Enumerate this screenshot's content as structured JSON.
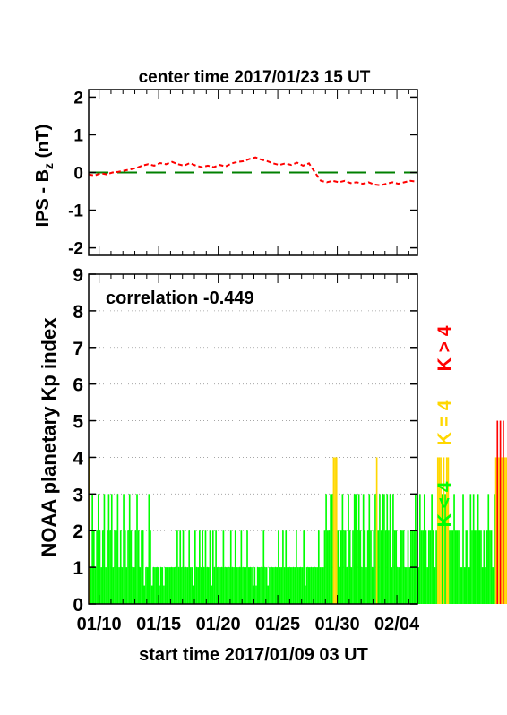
{
  "chart_data": [
    {
      "type": "line",
      "title": "center time 2017/01/23 15 UT",
      "ylabel_main": "IPS - B",
      "ylabel_sub": "z",
      "ylabel_unit": " (nT)",
      "ylim": [
        -2.2,
        2.2
      ],
      "yticks": [
        "-2",
        "-1",
        "0",
        "1",
        "2"
      ],
      "ytick_values": [
        -2,
        -1,
        0,
        1,
        2
      ],
      "xlim_days": [
        0,
        27.6
      ],
      "reference_line": {
        "y": 0,
        "color": "#008000",
        "style": "long-dash"
      },
      "series": [
        {
          "color": "#ff0000",
          "style": "dashed",
          "x": [
            0,
            0.5,
            1,
            1.5,
            2,
            2.5,
            3,
            3.5,
            4,
            4.5,
            5,
            5.5,
            6,
            6.5,
            7,
            7.5,
            8,
            8.5,
            9,
            9.5,
            10,
            10.5,
            11,
            11.5,
            12,
            12.5,
            13,
            13.5,
            14,
            14.5,
            15,
            15.5,
            16,
            16.5,
            17,
            17.5,
            18,
            18.5,
            19,
            19.5,
            20,
            20.5,
            21,
            21.5,
            22,
            22.5,
            23,
            23.5,
            24,
            24.5,
            25,
            25.5,
            26,
            26.5,
            27,
            27.5
          ],
          "y": [
            -0.05,
            -0.08,
            -0.02,
            -0.05,
            0.0,
            0.02,
            0.05,
            0.08,
            0.12,
            0.18,
            0.22,
            0.18,
            0.25,
            0.22,
            0.28,
            0.22,
            0.18,
            0.25,
            0.18,
            0.14,
            0.18,
            0.14,
            0.2,
            0.16,
            0.24,
            0.28,
            0.3,
            0.36,
            0.4,
            0.34,
            0.3,
            0.24,
            0.2,
            0.24,
            0.2,
            0.26,
            0.18,
            0.24,
            0.0,
            -0.22,
            -0.26,
            -0.22,
            -0.26,
            -0.22,
            -0.28,
            -0.26,
            -0.3,
            -0.26,
            -0.32,
            -0.34,
            -0.3,
            -0.26,
            -0.3,
            -0.26,
            -0.22,
            -0.24
          ]
        }
      ]
    },
    {
      "type": "bar",
      "ylabel": "NOAA planetary Kp index",
      "xlabel": "start time 2017/01/09 03 UT",
      "annotation": "correlation -0.449",
      "ylim": [
        0,
        9
      ],
      "yticks": [
        "0",
        "1",
        "2",
        "3",
        "4",
        "5",
        "6",
        "7",
        "8",
        "9"
      ],
      "ytick_values": [
        0,
        1,
        2,
        3,
        4,
        5,
        6,
        7,
        8,
        9
      ],
      "grid": "horizontal dotted",
      "xlim_days": [
        0,
        27.6
      ],
      "xticks": [
        "01/10",
        "01/15",
        "01/20",
        "01/25",
        "01/30",
        "02/04"
      ],
      "xtick_days": [
        0.875,
        5.875,
        10.875,
        15.875,
        20.875,
        25.875
      ],
      "bar_width_days": 0.125,
      "colors": {
        "low": "#00ff00",
        "mid": "#ffd700",
        "high": "#ff0000"
      },
      "legend": [
        {
          "label": "K < 4",
          "color": "#00ff00"
        },
        {
          "label": "K = 4",
          "color": "#ffd700"
        },
        {
          "label": "K > 4",
          "color": "#ff0000"
        }
      ],
      "legend_placement": "right, vertical",
      "series": [
        {
          "name": "Kp",
          "values": [
            4,
            1,
            3,
            2,
            1,
            2,
            3,
            2,
            1,
            2,
            3,
            1,
            2,
            3,
            2,
            3,
            1,
            2,
            2,
            3,
            1,
            2,
            1,
            3,
            2,
            1,
            2,
            3,
            2,
            1,
            1,
            2,
            3,
            2,
            1,
            2,
            2,
            0,
            1,
            1,
            3,
            2,
            0,
            1,
            1,
            1,
            1,
            0,
            1,
            1,
            0,
            1,
            1,
            1,
            1,
            1,
            1,
            1,
            1,
            2,
            1,
            2,
            1,
            2,
            1,
            1,
            1,
            2,
            1,
            1,
            0,
            2,
            1,
            1,
            2,
            1,
            2,
            1,
            2,
            1,
            1,
            2,
            0,
            2,
            1,
            2,
            1,
            1,
            1,
            1,
            2,
            1,
            1,
            1,
            1,
            2,
            1,
            1,
            2,
            1,
            1,
            1,
            2,
            1,
            1,
            1,
            2,
            1,
            1,
            1,
            0,
            1,
            0,
            1,
            1,
            1,
            1,
            2,
            1,
            1,
            0,
            1,
            1,
            1,
            1,
            1,
            1,
            2,
            1,
            1,
            2,
            1,
            2,
            1,
            1,
            1,
            1,
            1,
            1,
            2,
            1,
            1,
            1,
            1,
            2,
            0,
            1,
            1,
            1,
            1,
            1,
            1,
            1,
            1,
            2,
            1,
            1,
            1,
            2,
            3,
            2,
            2,
            3,
            3,
            4,
            4,
            4,
            2,
            1,
            2,
            3,
            2,
            2,
            1,
            3,
            2,
            1,
            2,
            3,
            3,
            2,
            3,
            2,
            1,
            3,
            2,
            1,
            2,
            3,
            2,
            1,
            2,
            3,
            4,
            2,
            3,
            2,
            3,
            3,
            2,
            3,
            2,
            3,
            1,
            3,
            2,
            2,
            1,
            1,
            2,
            2,
            2,
            1,
            1,
            2,
            1,
            2,
            2,
            2,
            3,
            2,
            1,
            3,
            2,
            2,
            3,
            2,
            1,
            2,
            2,
            3,
            2,
            1,
            2,
            4,
            4,
            4,
            3,
            4,
            3,
            4,
            4,
            2,
            2,
            2,
            3,
            2,
            2,
            2,
            1,
            1,
            3,
            1,
            2,
            2,
            1,
            3,
            2,
            3,
            2,
            2,
            3,
            2,
            2,
            1,
            2,
            1,
            2,
            3,
            2,
            2,
            1,
            3,
            4,
            5,
            4,
            5,
            4,
            5,
            4,
            4,
            4,
            3,
            3,
            4,
            4,
            3,
            3,
            4,
            2,
            1,
            2,
            3,
            3,
            2,
            2,
            3,
            3,
            3,
            2,
            2,
            3,
            2,
            2,
            1,
            2,
            2,
            2,
            1,
            1,
            3,
            3,
            3,
            1,
            2,
            3,
            2,
            2,
            3,
            3,
            3,
            3,
            1,
            1,
            0,
            1,
            1,
            2,
            2,
            2,
            3,
            3,
            3,
            3,
            1,
            1,
            4
          ]
        }
      ]
    }
  ]
}
